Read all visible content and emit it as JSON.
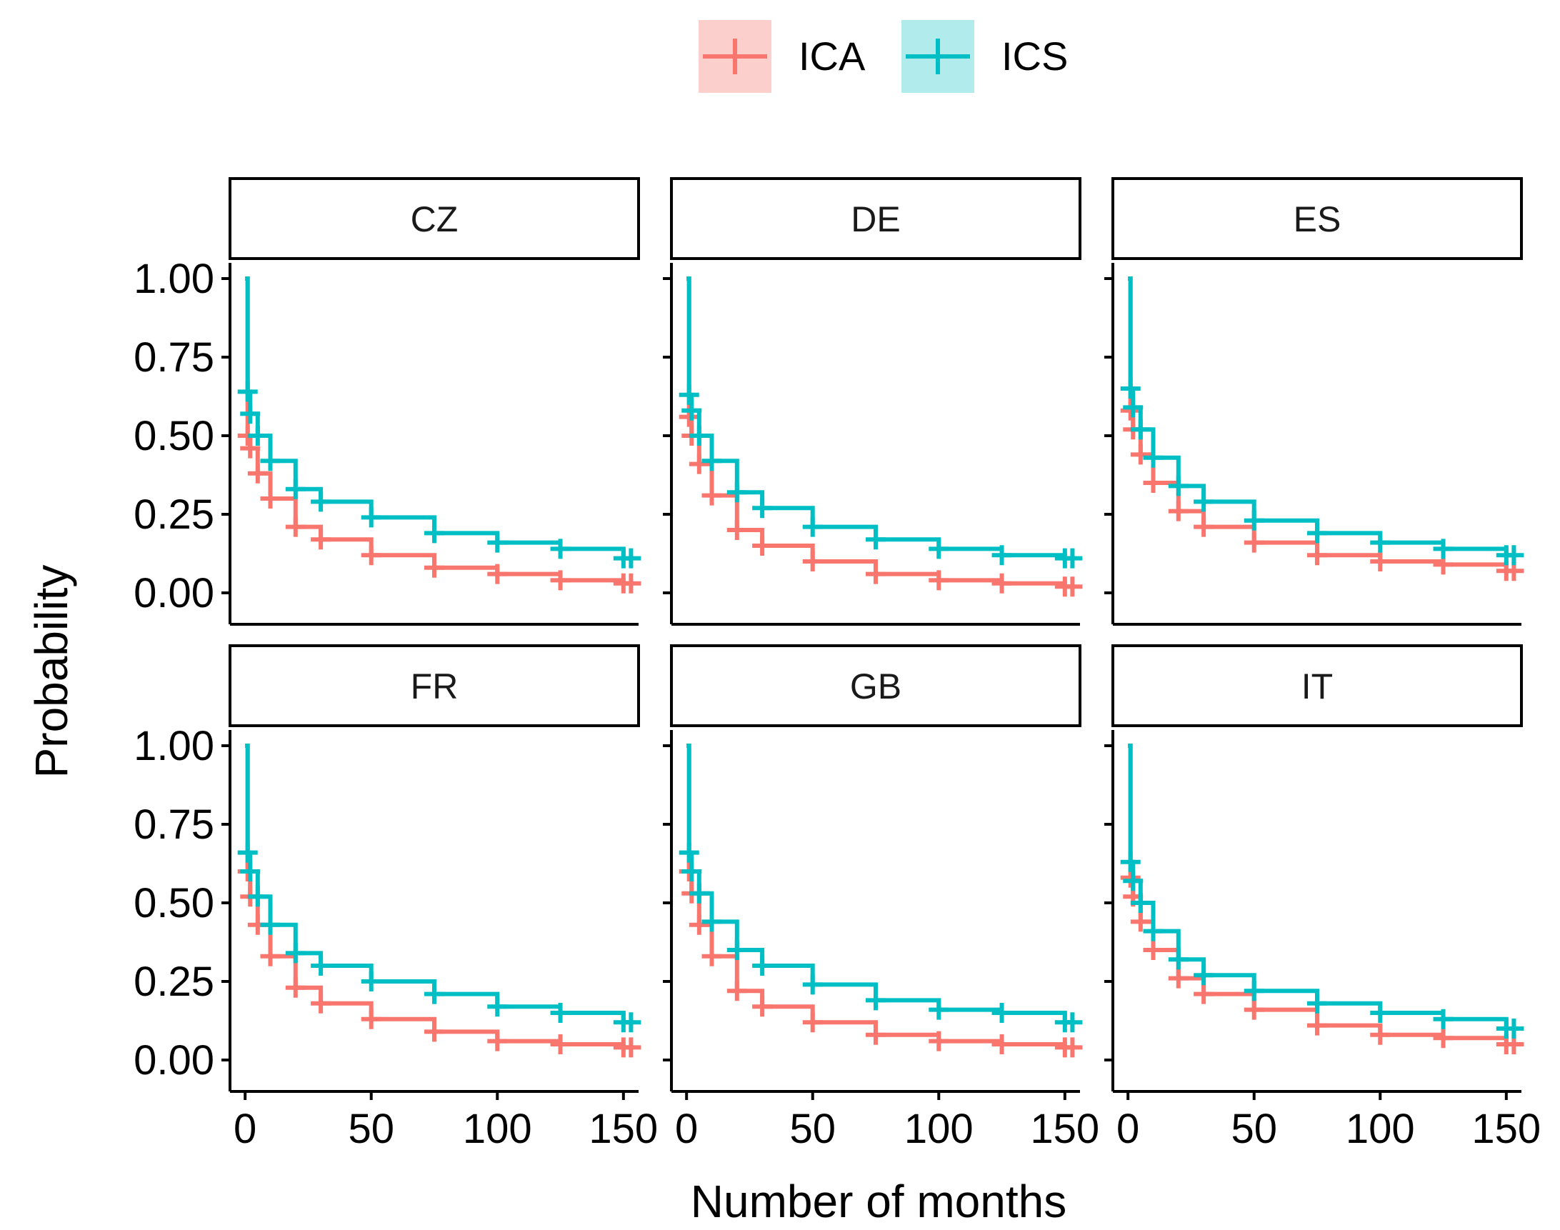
{
  "chart_data": {
    "type": "line",
    "subtype": "kaplan-meier survival curves with censoring marks, faceted",
    "xlabel": "Number of months",
    "ylabel": "Probability",
    "xlim": [
      -6,
      156
    ],
    "ylim": [
      -0.05,
      1.05
    ],
    "x_ticks": [
      0,
      50,
      100,
      150
    ],
    "x_tick_labels": [
      "0",
      "50",
      "100",
      "150"
    ],
    "y_ticks": [
      0,
      0.25,
      0.5,
      0.75,
      1.0
    ],
    "y_tick_labels": [
      "0.00",
      "0.25",
      "0.50",
      "0.75",
      "1.00"
    ],
    "legend": {
      "placement": "top-center",
      "entries": [
        {
          "name": "ICA",
          "color": "#F8766D",
          "fill": "#FBD0CC"
        },
        {
          "name": "ICS",
          "color": "#00BFC4",
          "fill": "#B2EBEC"
        }
      ]
    },
    "series_names": [
      "ICA",
      "ICS"
    ],
    "x": [
      0,
      1,
      2,
      5,
      10,
      20,
      30,
      50,
      75,
      100,
      125,
      150,
      153
    ],
    "facets": [
      {
        "label": "CZ",
        "series": [
          {
            "name": "ICA",
            "values": [
              1.0,
              0.5,
              0.46,
              0.38,
              0.3,
              0.21,
              0.17,
              0.12,
              0.08,
              0.06,
              0.04,
              0.03,
              0.03
            ]
          },
          {
            "name": "ICS",
            "values": [
              1.0,
              0.64,
              0.57,
              0.5,
              0.42,
              0.33,
              0.29,
              0.24,
              0.19,
              0.16,
              0.14,
              0.11,
              0.11
            ]
          }
        ]
      },
      {
        "label": "DE",
        "series": [
          {
            "name": "ICA",
            "values": [
              1.0,
              0.56,
              0.5,
              0.41,
              0.31,
              0.2,
              0.15,
              0.1,
              0.06,
              0.04,
              0.03,
              0.02,
              0.02
            ]
          },
          {
            "name": "ICS",
            "values": [
              1.0,
              0.63,
              0.58,
              0.5,
              0.42,
              0.32,
              0.27,
              0.21,
              0.17,
              0.14,
              0.12,
              0.11,
              0.11
            ]
          }
        ]
      },
      {
        "label": "ES",
        "series": [
          {
            "name": "ICA",
            "values": [
              1.0,
              0.58,
              0.52,
              0.44,
              0.35,
              0.26,
              0.21,
              0.16,
              0.12,
              0.1,
              0.09,
              0.07,
              0.07
            ]
          },
          {
            "name": "ICS",
            "values": [
              1.0,
              0.65,
              0.59,
              0.52,
              0.43,
              0.34,
              0.29,
              0.23,
              0.19,
              0.16,
              0.14,
              0.12,
              0.12
            ]
          }
        ]
      },
      {
        "label": "FR",
        "series": [
          {
            "name": "ICA",
            "values": [
              1.0,
              0.6,
              0.52,
              0.43,
              0.33,
              0.23,
              0.18,
              0.13,
              0.09,
              0.06,
              0.05,
              0.04,
              0.04
            ]
          },
          {
            "name": "ICS",
            "values": [
              1.0,
              0.66,
              0.6,
              0.52,
              0.43,
              0.34,
              0.3,
              0.25,
              0.21,
              0.17,
              0.15,
              0.12,
              0.12
            ]
          }
        ]
      },
      {
        "label": "GB",
        "series": [
          {
            "name": "ICA",
            "values": [
              1.0,
              0.6,
              0.53,
              0.43,
              0.33,
              0.22,
              0.17,
              0.12,
              0.08,
              0.06,
              0.05,
              0.04,
              0.04
            ]
          },
          {
            "name": "ICS",
            "values": [
              1.0,
              0.66,
              0.6,
              0.53,
              0.44,
              0.35,
              0.3,
              0.24,
              0.19,
              0.16,
              0.15,
              0.12,
              0.12
            ]
          }
        ]
      },
      {
        "label": "IT",
        "series": [
          {
            "name": "ICA",
            "values": [
              1.0,
              0.58,
              0.52,
              0.44,
              0.35,
              0.26,
              0.21,
              0.16,
              0.11,
              0.08,
              0.07,
              0.05,
              0.05
            ]
          },
          {
            "name": "ICS",
            "values": [
              1.0,
              0.63,
              0.57,
              0.5,
              0.41,
              0.32,
              0.27,
              0.22,
              0.18,
              0.15,
              0.13,
              0.1,
              0.1
            ]
          }
        ]
      }
    ]
  }
}
